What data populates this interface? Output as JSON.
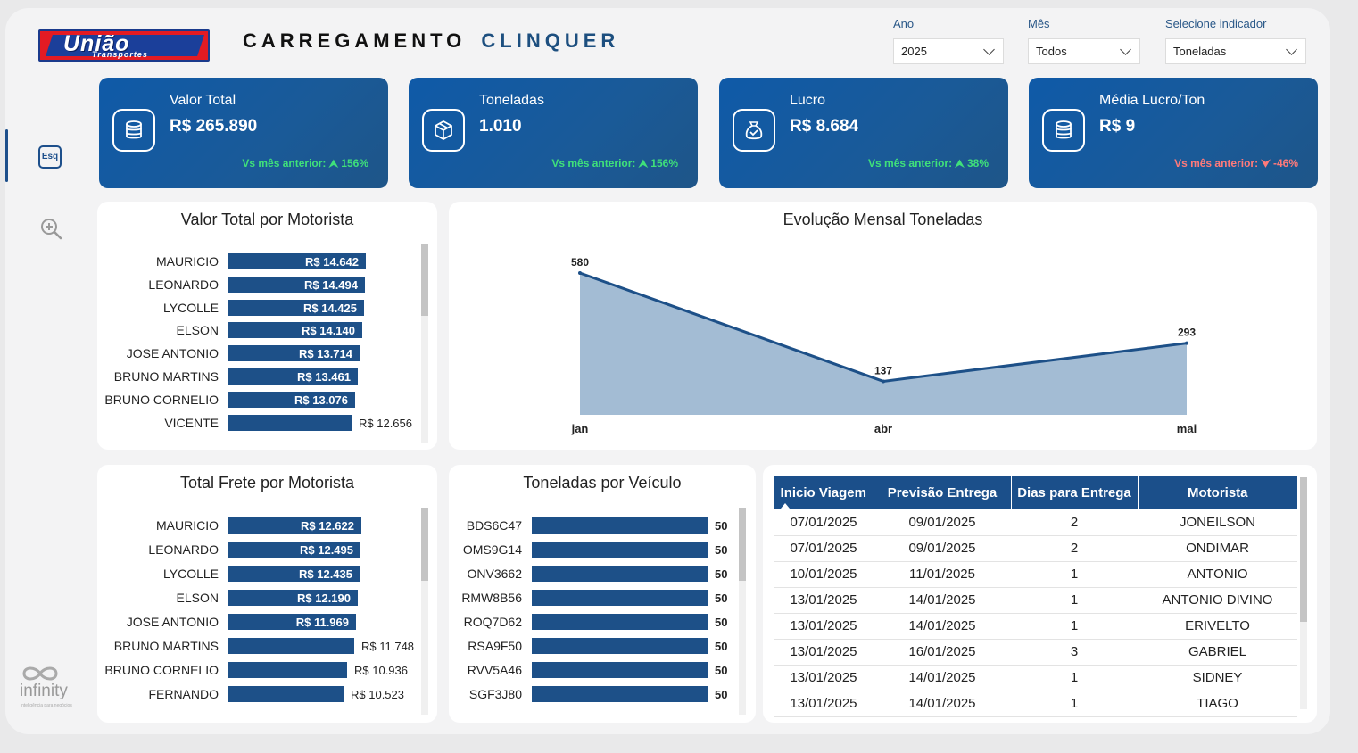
{
  "header": {
    "logo_word": "União",
    "logo_sub": "Transportes",
    "title_part1": "CARREGAMENTO",
    "title_part2": "CLINQUER"
  },
  "filters": [
    {
      "label": "Ano",
      "value": "2025"
    },
    {
      "label": "Mês",
      "value": "Todos"
    },
    {
      "label": "Selecione indicador",
      "value": "Toneladas"
    }
  ],
  "sidebar": {
    "esq_label": "Esq",
    "brand": "infinity",
    "brand_sub": "inteligência para negócios"
  },
  "kpis": [
    {
      "label": "Valor Total",
      "value": "R$ 265.890",
      "comparison": "Vs mês anterior: ",
      "change": "156%",
      "direction": "up",
      "icon": "database-icon"
    },
    {
      "label": "Toneladas",
      "value": "1.010",
      "comparison": "Vs mês anterior: ",
      "change": "156%",
      "direction": "up",
      "icon": "box-icon"
    },
    {
      "label": "Lucro",
      "value": "R$ 8.684",
      "comparison": "Vs mês anterior: ",
      "change": "38%",
      "direction": "up",
      "icon": "money-bag-icon"
    },
    {
      "label": "Média Lucro/Ton",
      "value": "R$ 9",
      "comparison": "Vs mês anterior: ",
      "change": "-46%",
      "direction": "down",
      "icon": "database-icon"
    }
  ],
  "valor_motorista": {
    "title": "Valor Total por Motorista",
    "chart_data": {
      "type": "bar",
      "orientation": "horizontal",
      "categories": [
        "MAURICIO",
        "LEONARDO",
        "LYCOLLE",
        "ELSON",
        "JOSE ANTONIO",
        "BRUNO MARTINS",
        "BRUNO CORNELIO",
        "VICENTE"
      ],
      "values": [
        14642,
        14494,
        14425,
        14140,
        13714,
        13461,
        13076,
        12656
      ],
      "labels": [
        "R$ 14.642",
        "R$ 14.494",
        "R$ 14.425",
        "R$ 14.140",
        "R$ 13.714",
        "R$ 13.461",
        "R$ 13.076",
        "R$ 12.656"
      ]
    }
  },
  "evolucao": {
    "title": "Evolução Mensal Toneladas",
    "chart_data": {
      "type": "area",
      "categories": [
        "jan",
        "abr",
        "mai"
      ],
      "values": [
        580,
        137,
        293
      ],
      "color": "#1d5088",
      "fill": "#a3bcd4"
    }
  },
  "frete_motorista": {
    "title": "Total Frete por Motorista",
    "chart_data": {
      "type": "bar",
      "orientation": "horizontal",
      "categories": [
        "MAURICIO",
        "LEONARDO",
        "LYCOLLE",
        "ELSON",
        "JOSE ANTONIO",
        "BRUNO MARTINS",
        "BRUNO CORNELIO",
        "FERNANDO"
      ],
      "values": [
        12622,
        12495,
        12435,
        12190,
        11969,
        11748,
        10936,
        10523
      ],
      "labels": [
        "R$ 12.622",
        "R$ 12.495",
        "R$ 12.435",
        "R$ 12.190",
        "R$ 11.969",
        "R$ 11.748",
        "R$ 10.936",
        "R$ 10.523"
      ]
    }
  },
  "toneladas_veiculo": {
    "title": "Toneladas por Veículo",
    "chart_data": {
      "type": "bar",
      "orientation": "horizontal",
      "categories": [
        "BDS6C47",
        "OMS9G14",
        "ONV3662",
        "RMW8B56",
        "ROQ7D62",
        "RSA9F50",
        "RVV5A46",
        "SGF3J80"
      ],
      "values": [
        50,
        50,
        50,
        50,
        50,
        50,
        50,
        50
      ],
      "labels": [
        "50",
        "50",
        "50",
        "50",
        "50",
        "50",
        "50",
        "50"
      ]
    }
  },
  "trips_table": {
    "columns": [
      "Inicio Viagem",
      "Previsão Entrega",
      "Dias para Entrega",
      "Motorista"
    ],
    "rows": [
      [
        "07/01/2025",
        "09/01/2025",
        "2",
        "JONEILSON"
      ],
      [
        "07/01/2025",
        "09/01/2025",
        "2",
        "ONDIMAR"
      ],
      [
        "10/01/2025",
        "11/01/2025",
        "1",
        "ANTONIO"
      ],
      [
        "13/01/2025",
        "14/01/2025",
        "1",
        "ANTONIO DIVINO"
      ],
      [
        "13/01/2025",
        "14/01/2025",
        "1",
        "ERIVELTO"
      ],
      [
        "13/01/2025",
        "16/01/2025",
        "3",
        "GABRIEL"
      ],
      [
        "13/01/2025",
        "14/01/2025",
        "1",
        "SIDNEY"
      ],
      [
        "13/01/2025",
        "14/01/2025",
        "1",
        "TIAGO"
      ]
    ]
  }
}
